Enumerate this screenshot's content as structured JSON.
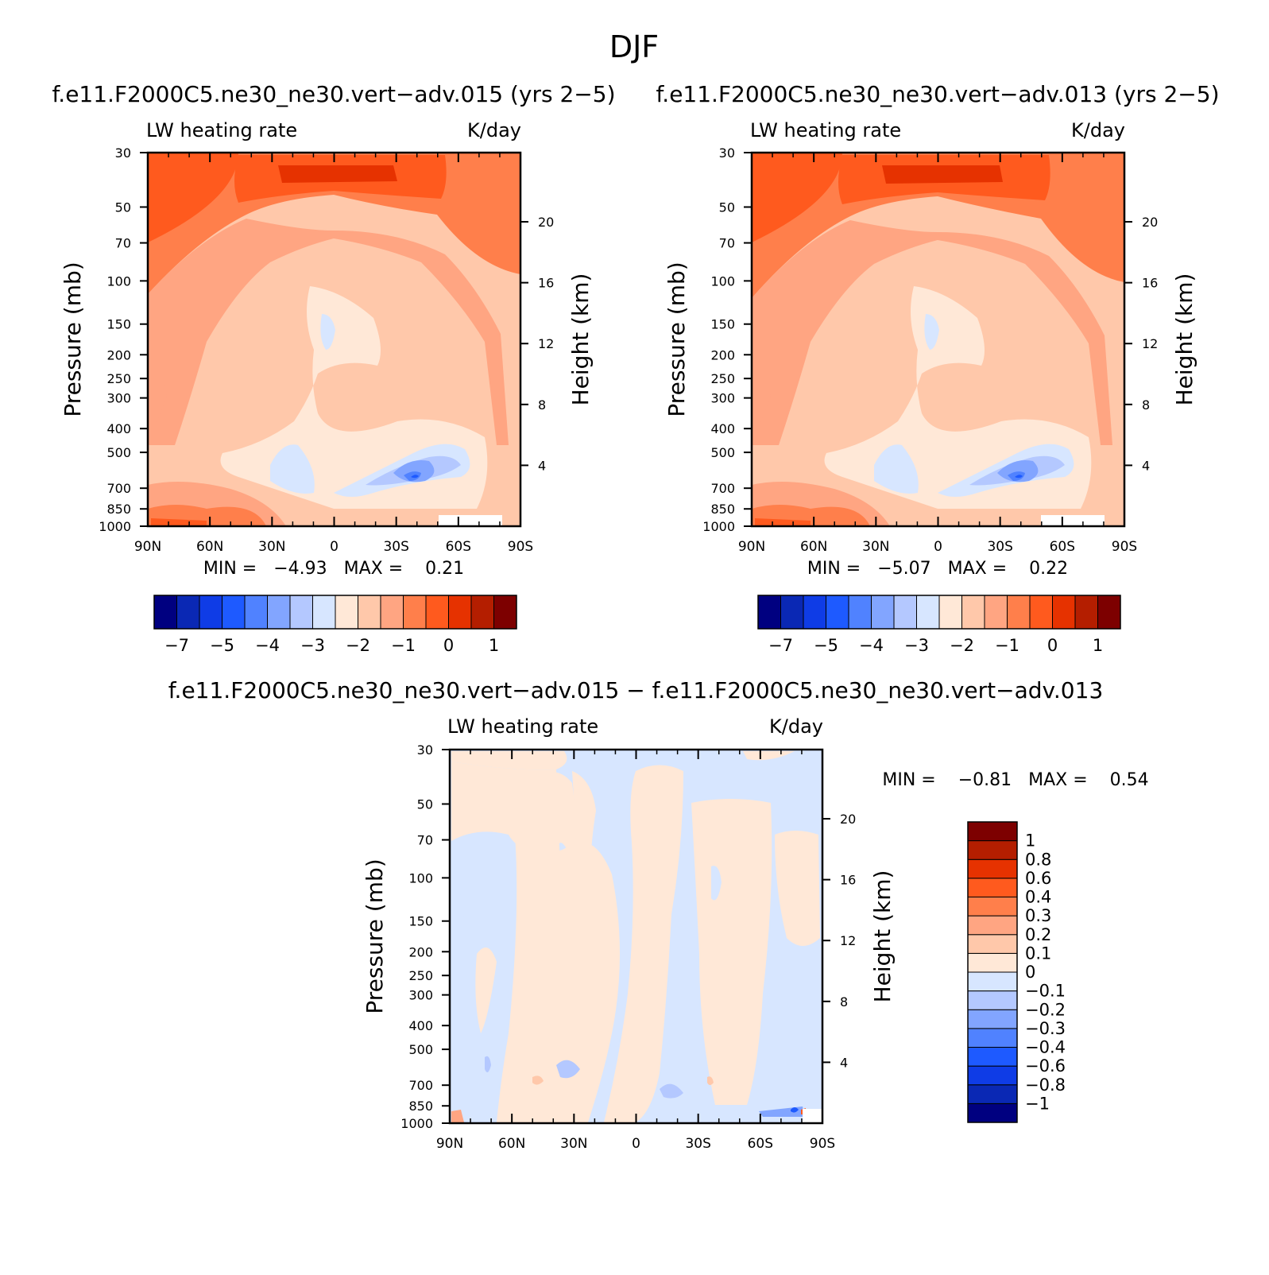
{
  "figure_title": "DJF",
  "panels": {
    "left": {
      "title": "f.e11.F2000C5.ne30_ne30.vert−adv.015 (yrs 2−5)",
      "subtitle_left": "LW heating rate",
      "subtitle_right": "K/day",
      "ylabel": "Pressure (mb)",
      "ylabel_right": "Height (km)",
      "stats_text": "MIN =   −4.93   MAX =    0.21"
    },
    "right": {
      "title": "f.e11.F2000C5.ne30_ne30.vert−adv.013 (yrs 2−5)",
      "subtitle_left": "LW heating rate",
      "subtitle_right": "K/day",
      "ylabel": "Pressure (mb)",
      "ylabel_right": "Height (km)",
      "stats_text": "MIN =   −5.07   MAX =    0.22"
    },
    "diff": {
      "title": "f.e11.F2000C5.ne30_ne30.vert−adv.015 − f.e11.F2000C5.ne30_ne30.vert−adv.013",
      "subtitle_left": "LW heating rate",
      "subtitle_right": "K/day",
      "ylabel": "Pressure (mb)",
      "ylabel_right": "Height (km)",
      "stats_text": "MIN =    −0.81   MAX =    0.54"
    }
  },
  "axes": {
    "lat_ticks": [
      "90N",
      "60N",
      "30N",
      "0",
      "30S",
      "60S",
      "90S"
    ],
    "pressure_ticks": [
      "30",
      "50",
      "70",
      "100",
      "150",
      "200",
      "250",
      "300",
      "400",
      "500",
      "700",
      "850",
      "1000"
    ],
    "height_ticks": [
      "20",
      "16",
      "12",
      "8",
      "4"
    ]
  },
  "colorbars": {
    "main": {
      "colors": [
        "#000080",
        "#0A28B4",
        "#0F3CE6",
        "#1E5AFF",
        "#5082FF",
        "#82A5FF",
        "#B4C8FF",
        "#D7E6FF",
        "#FFE8D7",
        "#FFC8AA",
        "#FFA582",
        "#FF7F4B",
        "#FF5A1E",
        "#E63200",
        "#B41E00",
        "#7D0000"
      ],
      "labels": [
        "−7",
        "−5",
        "−4",
        "−3",
        "−2",
        "−1",
        "0",
        "1"
      ]
    },
    "diff": {
      "colors": [
        "#000080",
        "#0A28B4",
        "#0F3CE6",
        "#1E5AFF",
        "#5082FF",
        "#82A5FF",
        "#B4C8FF",
        "#D7E6FF",
        "#FFE8D7",
        "#FFC8AA",
        "#FFA582",
        "#FF7F4B",
        "#FF5A1E",
        "#E63200",
        "#B41E00",
        "#7D0000"
      ],
      "labels": [
        "1",
        "0.8",
        "0.6",
        "0.4",
        "0.3",
        "0.2",
        "0.1",
        "0",
        "−0.1",
        "−0.2",
        "−0.3",
        "−0.4",
        "−0.6",
        "−0.8",
        "−1"
      ]
    }
  },
  "chart_data": [
    {
      "type": "heatmap",
      "title": "f.e11.F2000C5.ne30_ne30.vert−adv.015 (yrs 2−5)",
      "variable": "LW heating rate",
      "units": "K/day",
      "xlabel": "",
      "ylabel": "Pressure (mb)",
      "x_categories": [
        "90N",
        "60N",
        "30N",
        "0",
        "30S",
        "60S",
        "90S"
      ],
      "y_scale": "log",
      "y_ticks": [
        30,
        50,
        70,
        100,
        150,
        200,
        250,
        300,
        400,
        500,
        700,
        850,
        1000
      ],
      "ylim": [
        1000,
        30
      ],
      "min": -4.93,
      "max": 0.21
    },
    {
      "type": "heatmap",
      "title": "f.e11.F2000C5.ne30_ne30.vert−adv.013 (yrs 2−5)",
      "variable": "LW heating rate",
      "units": "K/day",
      "xlabel": "",
      "ylabel": "Pressure (mb)",
      "x_categories": [
        "90N",
        "60N",
        "30N",
        "0",
        "30S",
        "60S",
        "90S"
      ],
      "y_scale": "log",
      "y_ticks": [
        30,
        50,
        70,
        100,
        150,
        200,
        250,
        300,
        400,
        500,
        700,
        850,
        1000
      ],
      "ylim": [
        1000,
        30
      ],
      "min": -5.07,
      "max": 0.22
    },
    {
      "type": "heatmap",
      "title": "f.e11.F2000C5.ne30_ne30.vert−adv.015 − f.e11.F2000C5.ne30_ne30.vert−adv.013",
      "variable": "LW heating rate",
      "units": "K/day",
      "xlabel": "",
      "ylabel": "Pressure (mb)",
      "x_categories": [
        "90N",
        "60N",
        "30N",
        "0",
        "30S",
        "60S",
        "90S"
      ],
      "y_scale": "log",
      "y_ticks": [
        30,
        50,
        70,
        100,
        150,
        200,
        250,
        300,
        400,
        500,
        700,
        850,
        1000
      ],
      "ylim": [
        1000,
        30
      ],
      "min": -0.81,
      "max": 0.54
    }
  ]
}
